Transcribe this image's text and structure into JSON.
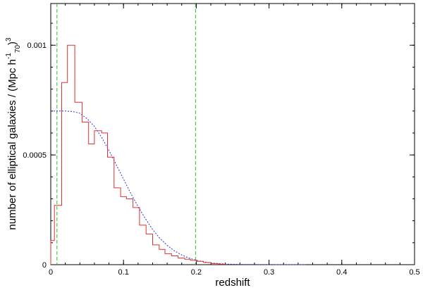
{
  "chart_data": {
    "type": "line",
    "xlabel": "redshift",
    "ylabel": {
      "main": "number of elliptical galaxies / (Mpc h",
      "sup1": "-1",
      "sub": "70",
      "close": ")",
      "sup2": "3"
    },
    "xlim": [
      0,
      0.5
    ],
    "ylim": [
      0,
      0.00119
    ],
    "x_ticks": [
      {
        "value": 0,
        "label": "0"
      },
      {
        "value": 0.1,
        "label": "0.1"
      },
      {
        "value": 0.2,
        "label": "0.2"
      },
      {
        "value": 0.3,
        "label": "0.3"
      },
      {
        "value": 0.4,
        "label": "0.4"
      },
      {
        "value": 0.5,
        "label": "0.5"
      }
    ],
    "y_ticks": [
      {
        "value": 0,
        "label": "0"
      },
      {
        "value": 0.0005,
        "label": "0.0005"
      },
      {
        "value": 0.001,
        "label": "0.001"
      }
    ],
    "x_minor_step": 0.02,
    "y_minor_step": 0.0001,
    "histogram": {
      "color": "#e03030",
      "bin_edges": [
        0.0,
        0.005,
        0.015,
        0.023,
        0.033,
        0.043,
        0.052,
        0.06,
        0.07,
        0.078,
        0.087,
        0.096,
        0.104,
        0.113,
        0.122,
        0.131,
        0.14,
        0.149,
        0.157,
        0.166,
        0.175,
        0.184,
        0.192,
        0.2,
        0.21,
        0.22,
        0.23,
        0.24
      ],
      "values": [
        0.00011,
        0.00027,
        0.00083,
        0.001,
        0.00074,
        0.00065,
        0.00055,
        0.00061,
        0.0006,
        0.00049,
        0.00035,
        0.00031,
        0.0003,
        0.00026,
        0.00018,
        0.00014,
        9e-05,
        7e-05,
        5e-05,
        4e-05,
        3e-05,
        2.5e-05,
        2e-05,
        1.5e-05,
        1e-05,
        5e-06,
        2e-06
      ]
    },
    "fit_curve": {
      "color": "#3030e0",
      "style": "dotted",
      "x": [
        0,
        0.01,
        0.02,
        0.03,
        0.04,
        0.05,
        0.06,
        0.07,
        0.08,
        0.09,
        0.1,
        0.11,
        0.12,
        0.13,
        0.14,
        0.15,
        0.16,
        0.17,
        0.18,
        0.19,
        0.2,
        0.21,
        0.22,
        0.23,
        0.24,
        0.25,
        0.26,
        0.27,
        0.28,
        0.3,
        0.32,
        0.35
      ],
      "y": [
        0.0007,
        0.0007,
        0.0007,
        0.000698,
        0.00069,
        0.000665,
        0.00063,
        0.00058,
        0.00052,
        0.000455,
        0.00039,
        0.000325,
        0.000265,
        0.00021,
        0.00016,
        0.00012,
        8.8e-05,
        6.3e-05,
        4.4e-05,
        3e-05,
        2e-05,
        1.3e-05,
        8e-06,
        5e-06,
        3e-06,
        2e-06,
        1.2e-06,
        8e-07,
        5e-07,
        2e-07,
        1e-07,
        0
      ]
    },
    "vertical_lines": [
      {
        "x": 0.0085,
        "color": "#30c030",
        "style": "dashed"
      },
      {
        "x": 0.199,
        "color": "#30c030",
        "style": "dashed"
      }
    ],
    "grid": false,
    "legend": "none"
  }
}
